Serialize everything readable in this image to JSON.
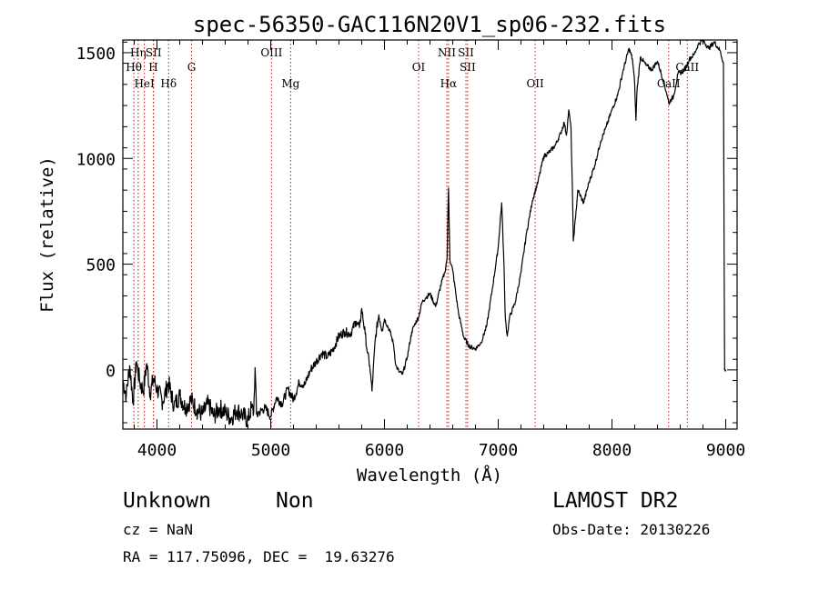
{
  "chart_data": {
    "type": "line",
    "title": "spec-56350-GAC116N20V1_sp06-232.fits",
    "xlabel": "Wavelength (Å)",
    "ylabel": "Flux (relative)",
    "xlim": [
      3700,
      9100
    ],
    "ylim": [
      -280,
      1560
    ],
    "x_ticks": [
      4000,
      5000,
      6000,
      7000,
      8000,
      9000
    ],
    "y_ticks": [
      0,
      500,
      1000,
      1500
    ],
    "grid": false,
    "line_color": "#000000",
    "marker_color": "#b22222",
    "line_markers": [
      {
        "label": "Hη",
        "x": 3835,
        "row": 0
      },
      {
        "label": "Hθ",
        "x": 3797,
        "row": 1
      },
      {
        "label": "HeI",
        "x": 3889,
        "row": 2
      },
      {
        "label": "SII",
        "x": 3970,
        "row": 0
      },
      {
        "label": "H",
        "x": 3968,
        "row": 1
      },
      {
        "label": "Hδ",
        "x": 4102,
        "row": 2
      },
      {
        "label": "G",
        "x": 4304,
        "row": 1
      },
      {
        "label": "OIII",
        "x": 5007,
        "row": 0
      },
      {
        "label": "Mg",
        "x": 5175,
        "row": 2
      },
      {
        "label": "OI",
        "x": 6300,
        "row": 1
      },
      {
        "label": "NII",
        "x": 6548,
        "row": 0
      },
      {
        "label": "Hα",
        "x": 6563,
        "row": 2
      },
      {
        "label": "SII",
        "x": 6716,
        "row": 0
      },
      {
        "label": "SII",
        "x": 6731,
        "row": 1
      },
      {
        "label": "OII",
        "x": 7325,
        "row": 2
      },
      {
        "label": "CaII",
        "x": 8498,
        "row": 2
      },
      {
        "label": "CaII",
        "x": 8662,
        "row": 1
      }
    ],
    "series": [
      {
        "x": [
          3700,
          3730,
          3760,
          3790,
          3820,
          3850,
          3880,
          3910,
          3940,
          3970,
          4000,
          4050,
          4100,
          4150,
          4200,
          4250,
          4300,
          4350,
          4400,
          4450,
          4500,
          4550,
          4600,
          4650,
          4700,
          4750,
          4800,
          4830,
          4850,
          4862,
          4875,
          4900,
          4950,
          5000,
          5050,
          5100,
          5150,
          5200,
          5250,
          5300,
          5350,
          5400,
          5450,
          5500,
          5550,
          5600,
          5650,
          5700,
          5750,
          5780,
          5800,
          5830,
          5850,
          5870,
          5890,
          5920,
          5950,
          5980,
          6000,
          6050,
          6080,
          6100,
          6130,
          6160,
          6200,
          6240,
          6270,
          6300,
          6330,
          6360,
          6400,
          6450,
          6500,
          6530,
          6550,
          6563,
          6575,
          6600,
          6650,
          6700,
          6750,
          6800,
          6850,
          6900,
          6950,
          7000,
          7030,
          7050,
          7060,
          7070,
          7080,
          7100,
          7150,
          7200,
          7250,
          7300,
          7350,
          7400,
          7450,
          7500,
          7550,
          7580,
          7600,
          7620,
          7640,
          7650,
          7660,
          7680,
          7700,
          7750,
          7800,
          7850,
          7900,
          7950,
          8000,
          8050,
          8100,
          8150,
          8180,
          8200,
          8210,
          8220,
          8250,
          8300,
          8350,
          8400,
          8450,
          8480,
          8500,
          8520,
          8540,
          8580,
          8620,
          8650,
          8680,
          8720,
          8760,
          8800,
          8850,
          8900,
          8950,
          8980,
          8990,
          9000
        ],
        "y": [
          -50,
          -120,
          20,
          -150,
          40,
          -60,
          -100,
          30,
          -110,
          -40,
          -90,
          -150,
          -60,
          -170,
          -120,
          -180,
          -140,
          -190,
          -210,
          -160,
          -220,
          -180,
          -200,
          -230,
          -190,
          -210,
          -240,
          -180,
          -200,
          10,
          -210,
          -200,
          -180,
          -220,
          -130,
          -160,
          -90,
          -140,
          -60,
          -70,
          0,
          40,
          80,
          60,
          100,
          160,
          180,
          170,
          230,
          200,
          290,
          170,
          80,
          20,
          -100,
          150,
          260,
          190,
          240,
          180,
          120,
          20,
          -10,
          -20,
          60,
          180,
          220,
          250,
          320,
          340,
          360,
          300,
          410,
          460,
          530,
          860,
          520,
          470,
          270,
          150,
          110,
          100,
          130,
          210,
          390,
          580,
          790,
          500,
          280,
          200,
          160,
          250,
          320,
          460,
          650,
          800,
          890,
          1010,
          1030,
          1060,
          1120,
          1170,
          1110,
          1230,
          1140,
          900,
          610,
          720,
          850,
          790,
          890,
          970,
          1080,
          1150,
          1230,
          1300,
          1420,
          1520,
          1470,
          1350,
          1180,
          1320,
          1480,
          1440,
          1420,
          1460,
          1370,
          1310,
          1260,
          1280,
          1290,
          1400,
          1410,
          1430,
          1470,
          1490,
          1540,
          1560,
          1520,
          1550,
          1510,
          1450,
          0,
          0
        ]
      }
    ]
  },
  "footer": {
    "class_label": "Unknown",
    "subclass_label": "Non",
    "cz_text": "cz = NaN",
    "coords_text": "RA = 117.75096, DEC =  19.63276",
    "survey_label": "LAMOST DR2",
    "obs_date_text": "Obs-Date: 20130226"
  }
}
